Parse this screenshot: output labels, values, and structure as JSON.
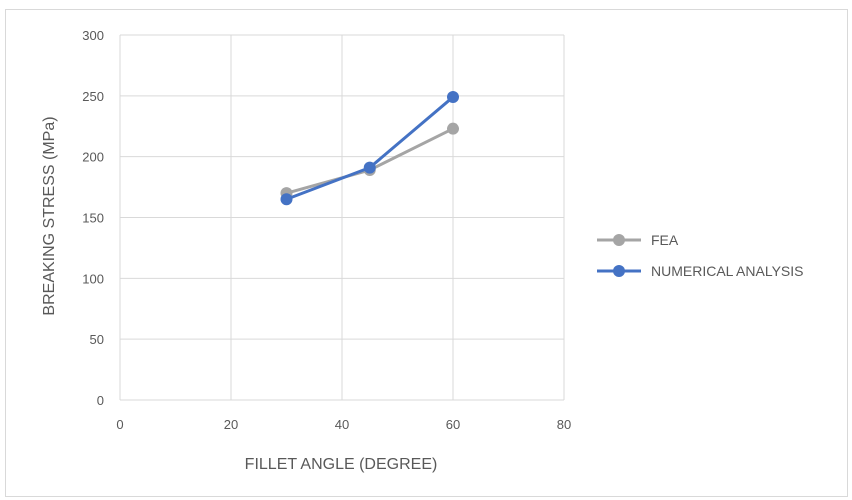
{
  "chart_data": {
    "type": "line",
    "title": "",
    "xlabel": "FILLET ANGLE (DEGREE)",
    "ylabel": "BREAKING STRESS (MPa)",
    "xlim": [
      0,
      80
    ],
    "ylim": [
      0,
      300
    ],
    "xticks": [
      0,
      20,
      40,
      60,
      80
    ],
    "yticks": [
      0,
      50,
      100,
      150,
      200,
      250,
      300
    ],
    "grid": true,
    "legend_position": "right",
    "series": [
      {
        "name": "FEA",
        "color": "#a5a5a5",
        "x": [
          30,
          45,
          60
        ],
        "y": [
          170,
          189,
          223
        ]
      },
      {
        "name": "NUMERICAL ANALYSIS",
        "color": "#4472c4",
        "x": [
          30,
          45,
          60
        ],
        "y": [
          165,
          191,
          249
        ]
      }
    ]
  }
}
